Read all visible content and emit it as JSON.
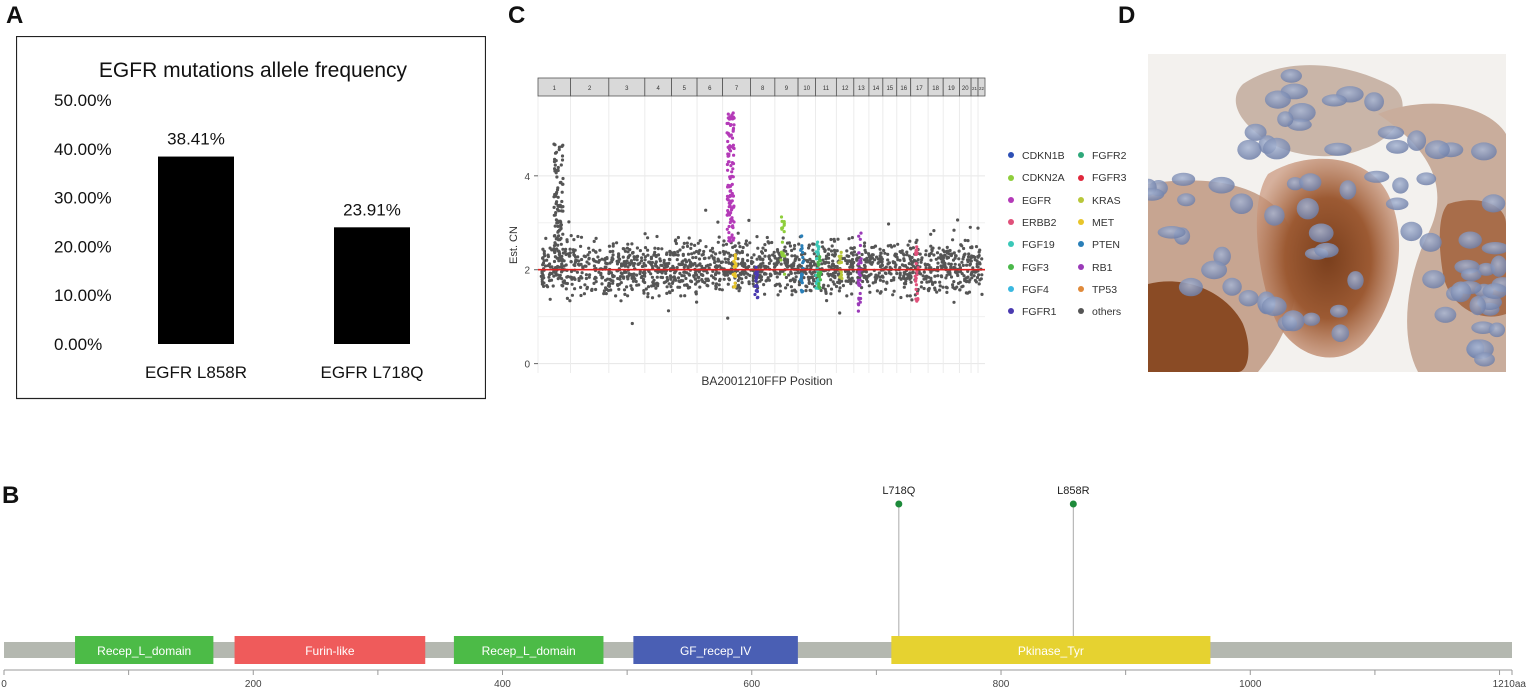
{
  "panels": {
    "a": "A",
    "b": "B",
    "c": "C",
    "d": "D"
  },
  "colors": {
    "bar": "#000000",
    "cn_line": "#e02020",
    "cn_point": "#555555",
    "domain_bg": "#b4b8b0",
    "lollipop": "#1d8a3a"
  },
  "chart_data": [
    {
      "id": "A",
      "type": "bar",
      "title": "EGFR mutations allele frequency",
      "categories": [
        "EGFR L858R",
        "EGFR L718Q"
      ],
      "values": [
        38.41,
        23.91
      ],
      "value_labels": [
        "38.41%",
        "23.91%"
      ],
      "ylim": [
        0,
        50
      ],
      "yticks": [
        0,
        10,
        20,
        30,
        40,
        50
      ],
      "ytick_labels": [
        "0.00%",
        "10.00%",
        "20.00%",
        "30.00%",
        "40.00%",
        "50.00%"
      ],
      "xlabel": "",
      "ylabel": ""
    },
    {
      "id": "C",
      "type": "scatter",
      "title": "",
      "xlabel": "BA2001210FFP Position",
      "ylabel": "Est. CN",
      "ylim": [
        -0.2,
        5.7
      ],
      "yticks": [
        0,
        2,
        4
      ],
      "ytick_labels": [
        "0",
        "2",
        "4"
      ],
      "baseline": 2,
      "chromosomes": [
        "1",
        "2",
        "3",
        "4",
        "5",
        "6",
        "7",
        "8",
        "9",
        "10",
        "11",
        "12",
        "13",
        "14",
        "15",
        "16",
        "17",
        "18",
        "19",
        "20",
        "21",
        "22"
      ],
      "legend": [
        {
          "name": "CDKN1B",
          "color": "#2d4fb5"
        },
        {
          "name": "FGFR2",
          "color": "#2ea87a"
        },
        {
          "name": "CDKN2A",
          "color": "#8fce3c"
        },
        {
          "name": "FGFR3",
          "color": "#e0273b"
        },
        {
          "name": "EGFR",
          "color": "#b43ab8"
        },
        {
          "name": "KRAS",
          "color": "#b8c73a"
        },
        {
          "name": "ERBB2",
          "color": "#e0507a"
        },
        {
          "name": "MET",
          "color": "#e8c52a"
        },
        {
          "name": "FGF19",
          "color": "#3ac8b8"
        },
        {
          "name": "PTEN",
          "color": "#2a7fb8"
        },
        {
          "name": "FGF3",
          "color": "#4ab84a"
        },
        {
          "name": "RB1",
          "color": "#9a3ab8"
        },
        {
          "name": "FGF4",
          "color": "#3ab8e0"
        },
        {
          "name": "TP53",
          "color": "#e08a3a"
        },
        {
          "name": "FGFR1",
          "color": "#4a3ab0"
        },
        {
          "name": "others",
          "color": "#555555"
        }
      ]
    },
    {
      "id": "B",
      "type": "lollipop",
      "protein_length": 1210,
      "xlim": [
        0,
        1210
      ],
      "xticks": [
        0,
        200,
        400,
        600,
        800,
        1000
      ],
      "xtick_labels": [
        "0",
        "200",
        "400",
        "600",
        "800",
        "1000"
      ],
      "end_label": "1210aa",
      "domains": [
        {
          "name": "Recep_L_domain",
          "start": 57,
          "end": 168,
          "color": "#4cbb47"
        },
        {
          "name": "Furin-like",
          "start": 185,
          "end": 338,
          "color": "#ef5b5b"
        },
        {
          "name": "Recep_L_domain",
          "start": 361,
          "end": 481,
          "color": "#4cbb47"
        },
        {
          "name": "GF_recep_IV",
          "start": 505,
          "end": 637,
          "color": "#4a5fb4"
        },
        {
          "name": "Pkinase_Tyr",
          "start": 712,
          "end": 968,
          "color": "#e6d230"
        }
      ],
      "mutations": [
        {
          "label": "L718Q",
          "position": 718
        },
        {
          "label": "L858R",
          "position": 858
        }
      ]
    }
  ]
}
